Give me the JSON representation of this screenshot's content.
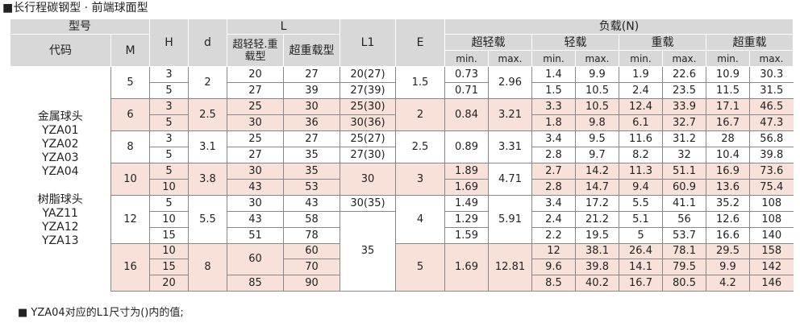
{
  "title": "■长行程碳钢型 · 前端球面型",
  "header": {
    "xinghao": "型号",
    "daima": "代码",
    "M": "M",
    "H": "H",
    "d": "d",
    "L": "L",
    "L_a": "超轻轻.重载型",
    "L_b": "超重载型",
    "L1": "L1",
    "E": "E",
    "load": "负载(N)",
    "groups": [
      "超轻载",
      "轻载",
      "重载",
      "超重载"
    ],
    "min": "min.",
    "max": "max."
  },
  "codes": {
    "metal_label": "金属球头",
    "metal": [
      "YZA01",
      "YZA02",
      "YZA03",
      "YZA04"
    ],
    "resin_label": "树脂球头",
    "resin": [
      "YAZ11",
      "YZA12",
      "YZA13"
    ]
  },
  "groups": [
    {
      "M": "5",
      "d": "2",
      "E": "1.5",
      "shade": false,
      "xl_max": "2.96",
      "rows": [
        {
          "H": "3",
          "La": "20",
          "Lb": "27",
          "L1": "20(27)",
          "xl_min": "0.73",
          "l_min": "1.4",
          "l_max": "9.9",
          "h_min": "1.9",
          "h_max": "22.6",
          "sh_min": "10.9",
          "sh_max": "30.3"
        },
        {
          "H": "5",
          "La": "27",
          "Lb": "39",
          "L1": "27(39)",
          "xl_min": "0.71",
          "l_min": "1.5",
          "l_max": "10.5",
          "h_min": "2.4",
          "h_max": "23.5",
          "sh_min": "11.5",
          "sh_max": "31.5"
        }
      ]
    },
    {
      "M": "6",
      "d": "2.5",
      "E": "2",
      "shade": true,
      "xl_min": "0.84",
      "xl_max": "3.21",
      "rows": [
        {
          "H": "3",
          "La": "25",
          "Lb": "30",
          "L1": "25(30)",
          "l_min": "3.3",
          "l_max": "10.5",
          "h_min": "12.4",
          "h_max": "33.9",
          "sh_min": "17.1",
          "sh_max": "46.5"
        },
        {
          "H": "5",
          "La": "30",
          "Lb": "36",
          "L1": "30(36)",
          "l_min": "1.8",
          "l_max": "9.8",
          "h_min": "6.1",
          "h_max": "32.7",
          "sh_min": "16.7",
          "sh_max": "47.3"
        }
      ]
    },
    {
      "M": "8",
      "d": "3.1",
      "E": "2.5",
      "shade": false,
      "xl_min": "0.89",
      "xl_max": "3.31",
      "rows": [
        {
          "H": "3",
          "La": "25",
          "Lb": "27",
          "L1": "25(27)",
          "l_min": "3.4",
          "l_max": "9.5",
          "h_min": "11.6",
          "h_max": "31.2",
          "sh_min": "28",
          "sh_max": "56.8"
        },
        {
          "H": "5",
          "La": "27",
          "Lb": "35",
          "L1": "27(30)",
          "l_min": "2.8",
          "l_max": "9.7",
          "h_min": "8.2",
          "h_max": "32",
          "sh_min": "10.4",
          "sh_max": "39.8"
        }
      ]
    },
    {
      "M": "10",
      "d": "3.8",
      "E": "3",
      "L1": "30",
      "shade": true,
      "xl_max": "4.71",
      "rows": [
        {
          "H": "5",
          "La": "30",
          "Lb": "35",
          "xl_min": "1.89",
          "l_min": "2.7",
          "l_max": "14.2",
          "h_min": "11.3",
          "h_max": "51.1",
          "sh_min": "16.9",
          "sh_max": "73.6"
        },
        {
          "H": "10",
          "La": "43",
          "Lb": "53",
          "xl_min": "1.69",
          "l_min": "2.8",
          "l_max": "14.7",
          "h_min": "9.4",
          "h_max": "60.9",
          "sh_min": "13.6",
          "sh_max": "75.4"
        }
      ]
    },
    {
      "M": "12",
      "d": "5.5",
      "E": "4",
      "shade": false,
      "xl_max": "5.91",
      "rows": [
        {
          "H": "5",
          "La": "30",
          "Lb": "43",
          "L1": "30(35)",
          "xl_min": "1.49",
          "l_min": "3.4",
          "l_max": "17.2",
          "h_min": "5.5",
          "h_max": "41.1",
          "sh_min": "35.2",
          "sh_max": "108"
        },
        {
          "H": "10",
          "La": "43",
          "Lb": "58",
          "xl_min": "1.29",
          "l_min": "2.4",
          "l_max": "21.2",
          "h_min": "5.1",
          "h_max": "56",
          "sh_min": "12.6",
          "sh_max": "108"
        },
        {
          "H": "15",
          "La": "51",
          "Lb": "78",
          "xl_min": "1.59",
          "l_min": "2.2",
          "l_max": "19.5",
          "h_min": "5",
          "h_max": "53.7",
          "sh_min": "16.6",
          "sh_max": "140"
        }
      ]
    },
    {
      "M": "16",
      "d": "8",
      "E": "5",
      "shade": true,
      "La": "60",
      "xl_min": "1.69",
      "xl_max": "12.81",
      "rows": [
        {
          "H": "10",
          "Lb": "60",
          "l_min": "12",
          "l_max": "38.1",
          "h_min": "26.4",
          "h_max": "78.1",
          "sh_min": "29.5",
          "sh_max": "158"
        },
        {
          "H": "15",
          "Lb": "70",
          "l_min": "9.6",
          "l_max": "39.8",
          "h_min": "14.1",
          "h_max": "79.5",
          "sh_min": "9.9",
          "sh_max": "142"
        },
        {
          "H": "20",
          "La": "85",
          "Lb": "90",
          "l_min": "8.5",
          "l_max": "40.2",
          "h_min": "16.7",
          "h_max": "80.5",
          "sh_min": "4.2",
          "sh_max": "146"
        }
      ]
    }
  ],
  "L1_shared": "35",
  "note": "■ YZA04对应的L1尺寸为()内的值;"
}
